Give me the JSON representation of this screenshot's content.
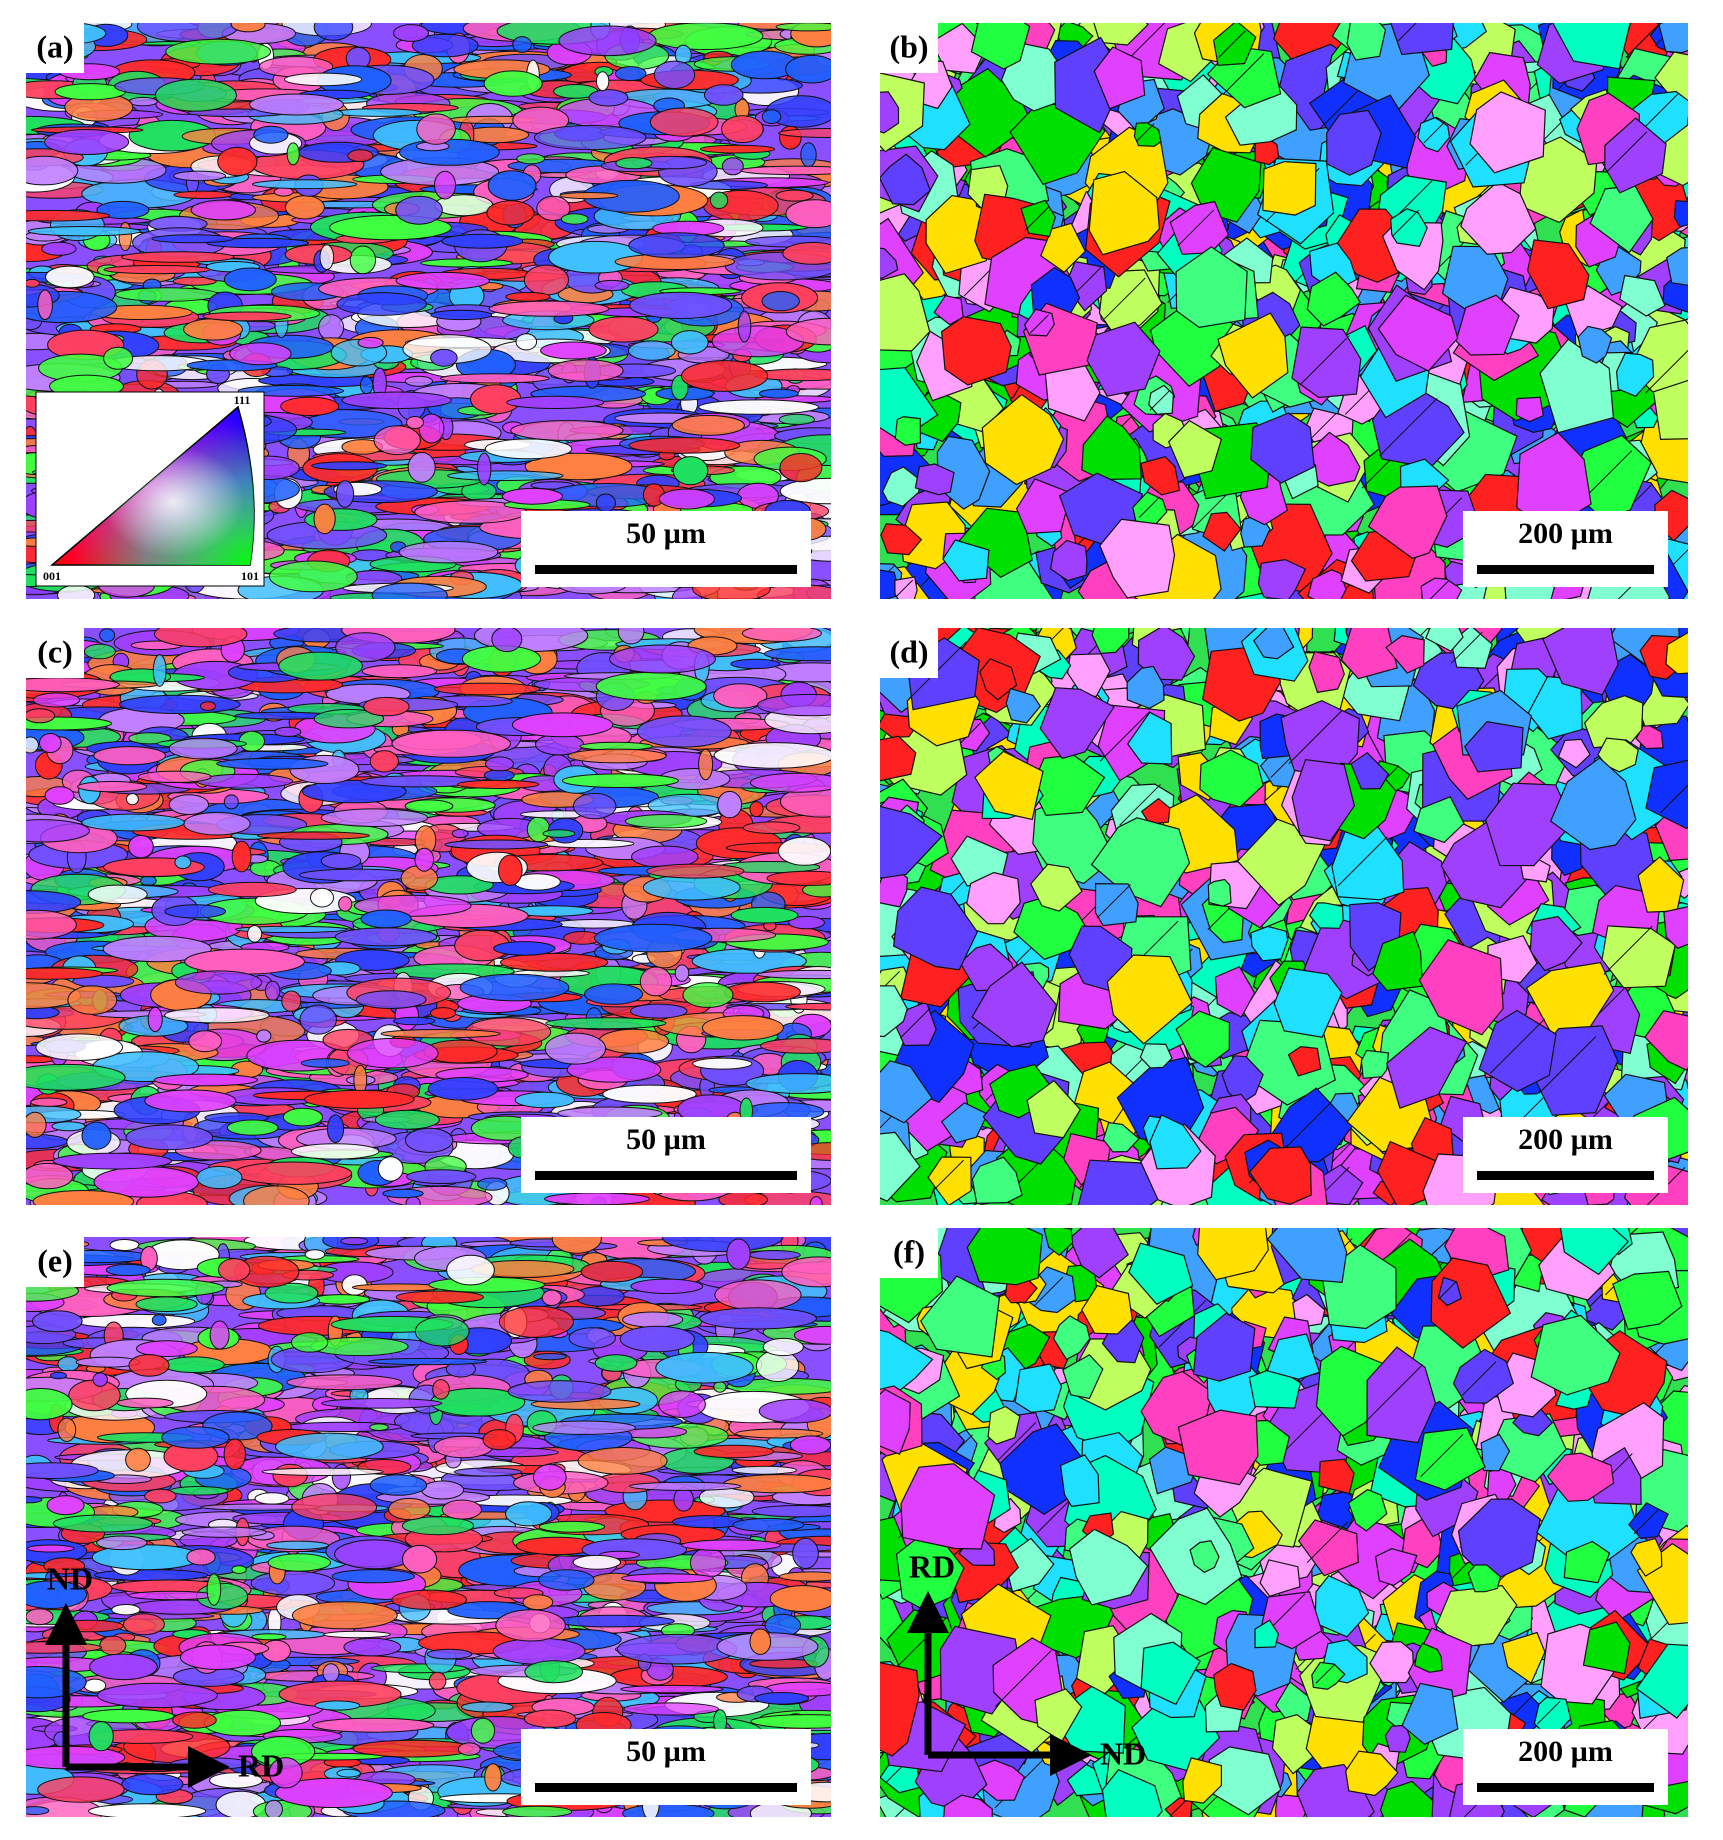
{
  "panels": [
    {
      "label": "(a)",
      "scale_bar": "50 µm",
      "inset": {
        "top": "111",
        "bottom_left": "001",
        "bottom_right": "101"
      }
    },
    {
      "label": "(b)",
      "scale_bar": "200 µm"
    },
    {
      "label": "(c)",
      "scale_bar": "50 µm"
    },
    {
      "label": "(d)",
      "scale_bar": "200 µm"
    },
    {
      "label": "(e)",
      "scale_bar": "50 µm",
      "axes": {
        "vertical": "ND",
        "horizontal": "RD"
      }
    },
    {
      "label": "(f)",
      "scale_bar": "200 µm",
      "axes": {
        "vertical": "RD",
        "horizontal": "ND"
      }
    }
  ]
}
